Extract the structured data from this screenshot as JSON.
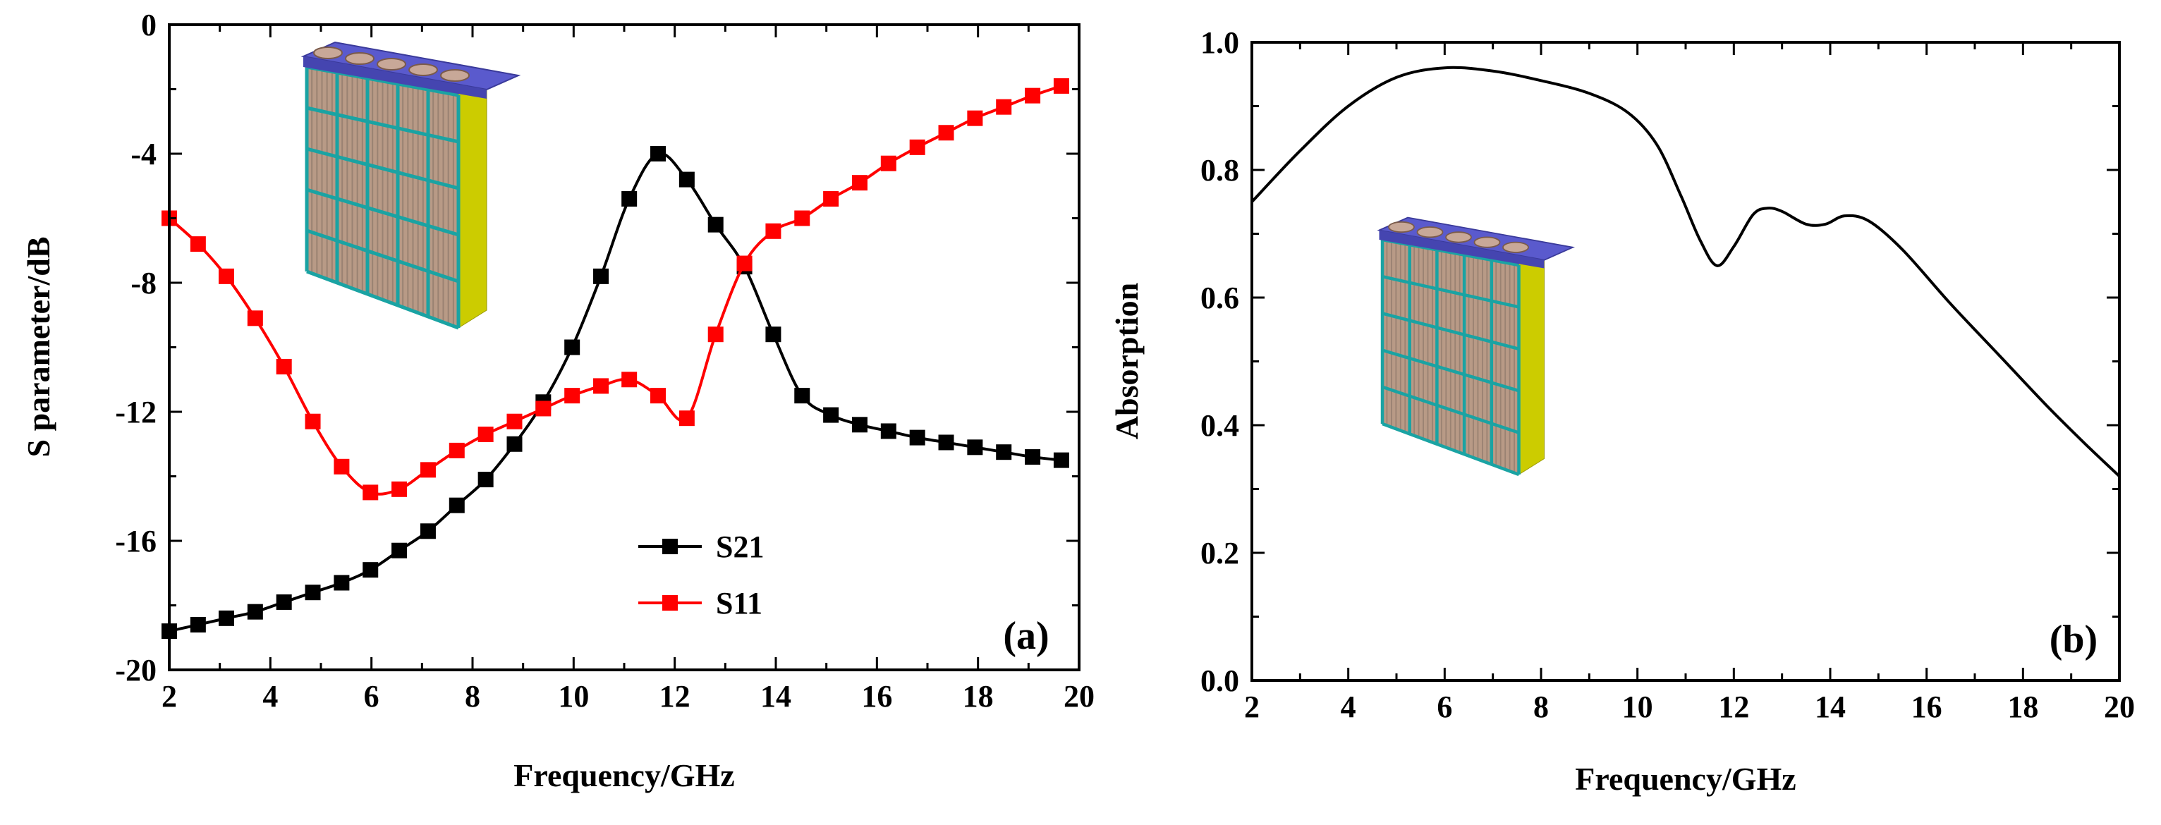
{
  "chart_data": [
    {
      "type": "line",
      "panel_label": "(a)",
      "xlabel": "Frequency/GHz",
      "ylabel": "S parameter/dB",
      "xlim": [
        2,
        20
      ],
      "ylim": [
        -20,
        0
      ],
      "grid": false,
      "legend_position": "bottom-center",
      "x_ticks": [
        2,
        4,
        6,
        8,
        10,
        12,
        14,
        16,
        18,
        20
      ],
      "x_tick_labels": [
        "2",
        "4",
        "6",
        "8",
        "10",
        "12",
        "14",
        "16",
        "18",
        "20"
      ],
      "y_ticks": [
        -20,
        -16,
        -12,
        -8,
        -4,
        0
      ],
      "y_tick_labels": [
        "-20",
        "-16",
        "-12",
        "-8",
        "-4",
        "0"
      ],
      "x": [
        2.0,
        2.57,
        3.13,
        3.7,
        4.27,
        4.84,
        5.41,
        5.98,
        6.55,
        7.12,
        7.69,
        8.26,
        8.83,
        9.4,
        9.97,
        10.54,
        11.1,
        11.67,
        12.24,
        12.81,
        13.38,
        13.95,
        14.52,
        15.09,
        15.66,
        16.23,
        16.8,
        17.37,
        17.94,
        18.51,
        19.08,
        19.65
      ],
      "series": [
        {
          "name": "S21",
          "color": "#000000",
          "marker": "square",
          "values": [
            -18.8,
            -18.6,
            -18.4,
            -18.2,
            -17.9,
            -17.6,
            -17.3,
            -16.9,
            -16.3,
            -15.7,
            -14.9,
            -14.1,
            -13.0,
            -11.7,
            -10.0,
            -7.8,
            -5.4,
            -4.0,
            -4.8,
            -6.2,
            -7.5,
            -9.6,
            -11.5,
            -12.1,
            -12.4,
            -12.6,
            -12.8,
            -12.95,
            -13.1,
            -13.25,
            -13.4,
            -13.5
          ]
        },
        {
          "name": "S11",
          "color": "#ff0000",
          "marker": "square",
          "values": [
            -6.0,
            -6.8,
            -7.8,
            -9.1,
            -10.6,
            -12.3,
            -13.7,
            -14.5,
            -14.4,
            -13.8,
            -13.2,
            -12.7,
            -12.3,
            -11.9,
            -11.5,
            -11.2,
            -11.0,
            -11.5,
            -12.2,
            -9.6,
            -7.4,
            -6.4,
            -6.0,
            -5.4,
            -4.9,
            -4.3,
            -3.8,
            -3.35,
            -2.9,
            -2.55,
            -2.2,
            -1.9
          ]
        }
      ]
    },
    {
      "type": "line",
      "panel_label": "(b)",
      "xlabel": "Frequency/GHz",
      "ylabel": "Absorption",
      "xlim": [
        2,
        20
      ],
      "ylim": [
        0.0,
        1.0
      ],
      "grid": false,
      "x_ticks": [
        2,
        4,
        6,
        8,
        10,
        12,
        14,
        16,
        18,
        20
      ],
      "x_tick_labels": [
        "2",
        "4",
        "6",
        "8",
        "10",
        "12",
        "14",
        "16",
        "18",
        "20"
      ],
      "y_ticks": [
        0.0,
        0.2,
        0.4,
        0.6,
        0.8,
        1.0
      ],
      "y_tick_labels": [
        "0.0",
        "0.2",
        "0.4",
        "0.6",
        "0.8",
        "1.0"
      ],
      "series": [
        {
          "name": "Absorption",
          "color": "#000000",
          "marker": "none",
          "x": [
            2.0,
            3.0,
            4.0,
            5.0,
            6.0,
            7.0,
            8.0,
            9.0,
            9.8,
            10.4,
            10.9,
            11.3,
            11.65,
            12.0,
            12.4,
            12.7,
            13.0,
            13.5,
            13.9,
            14.3,
            14.8,
            15.5,
            16.5,
            17.5,
            18.5,
            19.3,
            20.0
          ],
          "values": [
            0.75,
            0.83,
            0.9,
            0.945,
            0.96,
            0.955,
            0.94,
            0.92,
            0.89,
            0.84,
            0.76,
            0.69,
            0.65,
            0.68,
            0.73,
            0.74,
            0.735,
            0.715,
            0.715,
            0.728,
            0.72,
            0.675,
            0.59,
            0.51,
            0.43,
            0.37,
            0.32
          ]
        }
      ]
    }
  ],
  "insets": [
    {
      "name": "unit-cell-inset-a",
      "description_icon": "absorber-unit-cell"
    },
    {
      "name": "unit-cell-inset-b",
      "description_icon": "absorber-unit-cell"
    }
  ]
}
